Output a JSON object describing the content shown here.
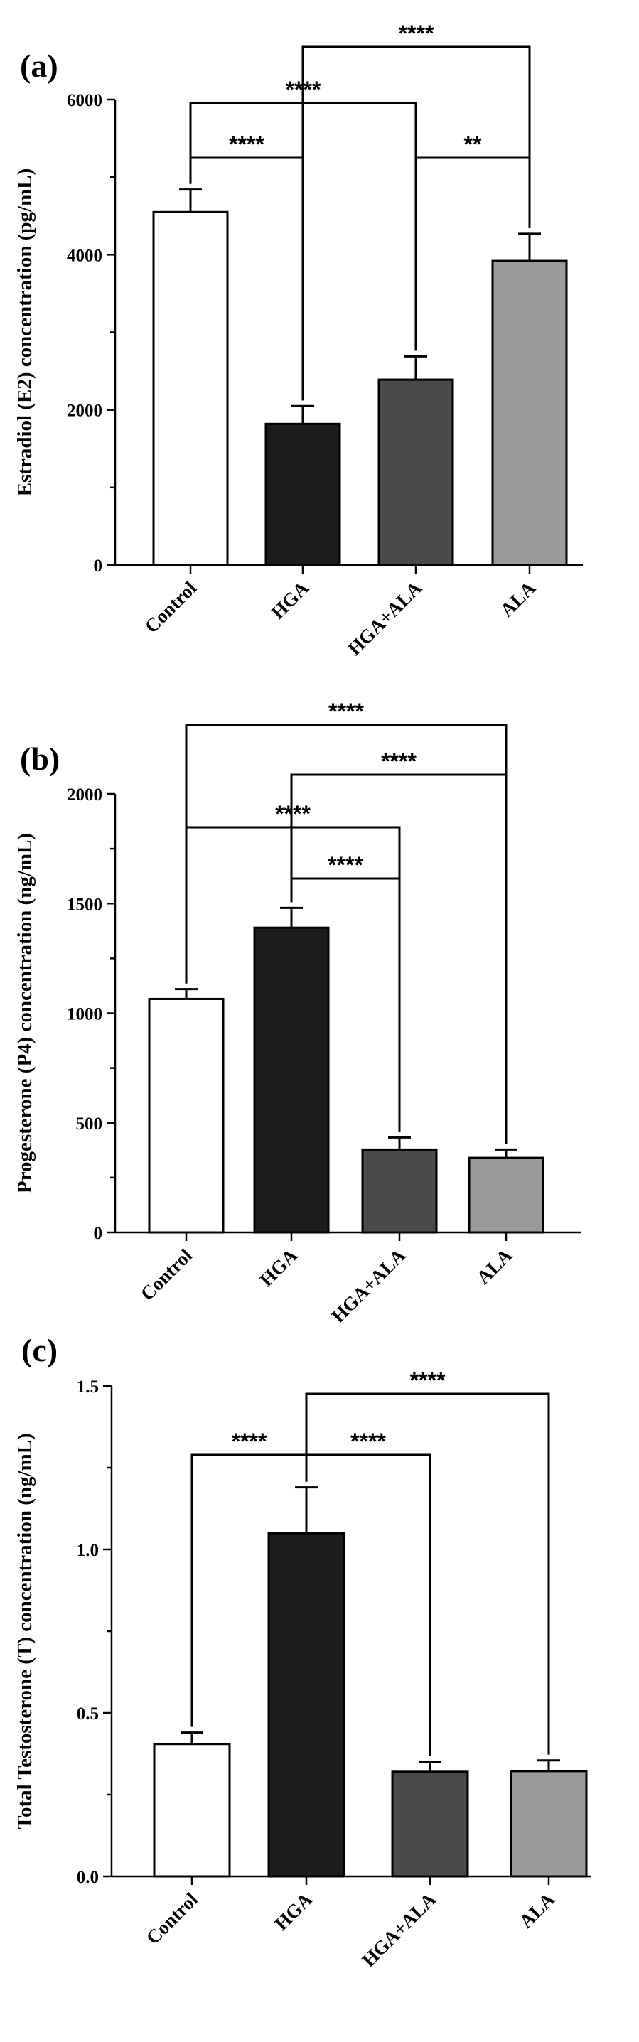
{
  "chart_data": [
    {
      "type": "bar",
      "panel_label": "(a)",
      "ylabel": "Estradiol (E2) concentration (pg/mL)",
      "categories": [
        "Control",
        "HGA",
        "HGA+ALA",
        "ALA"
      ],
      "values": [
        4550,
        1820,
        2390,
        3920
      ],
      "errors": [
        290,
        230,
        300,
        350
      ],
      "colors": [
        "#ffffff",
        "#1c1c1c",
        "#4a4a4a",
        "#9a9a9a"
      ],
      "ylim": [
        0,
        6000
      ],
      "yticks": [
        0,
        2000,
        4000,
        6000
      ],
      "ytick_labels": [
        "0",
        "2000",
        "4000",
        "6000"
      ],
      "comparisons": [
        {
          "from": 0,
          "to": 1,
          "label": "****"
        },
        {
          "from": 0,
          "to": 2,
          "label": "****"
        },
        {
          "from": 2,
          "to": 3,
          "label": "**"
        },
        {
          "from": 1,
          "to": 3,
          "label": "****"
        }
      ]
    },
    {
      "type": "bar",
      "panel_label": "(b)",
      "ylabel": "Progesterone (P4) concentration (ng/mL)",
      "categories": [
        "Control",
        "HGA",
        "HGA+ALA",
        "ALA"
      ],
      "values": [
        1065,
        1390,
        378,
        340
      ],
      "errors": [
        45,
        90,
        55,
        38
      ],
      "colors": [
        "#ffffff",
        "#1c1c1c",
        "#4a4a4a",
        "#9a9a9a"
      ],
      "ylim": [
        0,
        2000
      ],
      "yticks": [
        0,
        500,
        1000,
        1500,
        2000
      ],
      "ytick_labels": [
        "0",
        "500",
        "1000",
        "1500",
        "2000"
      ],
      "comparisons": [
        {
          "from": 1,
          "to": 2,
          "label": "****"
        },
        {
          "from": 0,
          "to": 2,
          "label": "****"
        },
        {
          "from": 1,
          "to": 3,
          "label": "****"
        },
        {
          "from": 0,
          "to": 3,
          "label": "****"
        }
      ]
    },
    {
      "type": "bar",
      "panel_label": "(c)",
      "ylabel": "Total Testosterone (T) concentration (ng/mL)",
      "categories": [
        "Control",
        "HGA",
        "HGA+ALA",
        "ALA"
      ],
      "values": [
        0.405,
        1.05,
        0.32,
        0.322
      ],
      "errors": [
        0.035,
        0.14,
        0.03,
        0.033
      ],
      "colors": [
        "#ffffff",
        "#1c1c1c",
        "#4a4a4a",
        "#9a9a9a"
      ],
      "ylim": [
        0,
        1.5
      ],
      "yticks": [
        0,
        0.5,
        1.0,
        1.5
      ],
      "ytick_labels": [
        "0.0",
        "0.5",
        "1.0",
        "1.5"
      ],
      "comparisons": [
        {
          "from": 0,
          "to": 1,
          "label": "****"
        },
        {
          "from": 1,
          "to": 2,
          "label": "****"
        },
        {
          "from": 1,
          "to": 3,
          "label": "****"
        }
      ]
    }
  ]
}
